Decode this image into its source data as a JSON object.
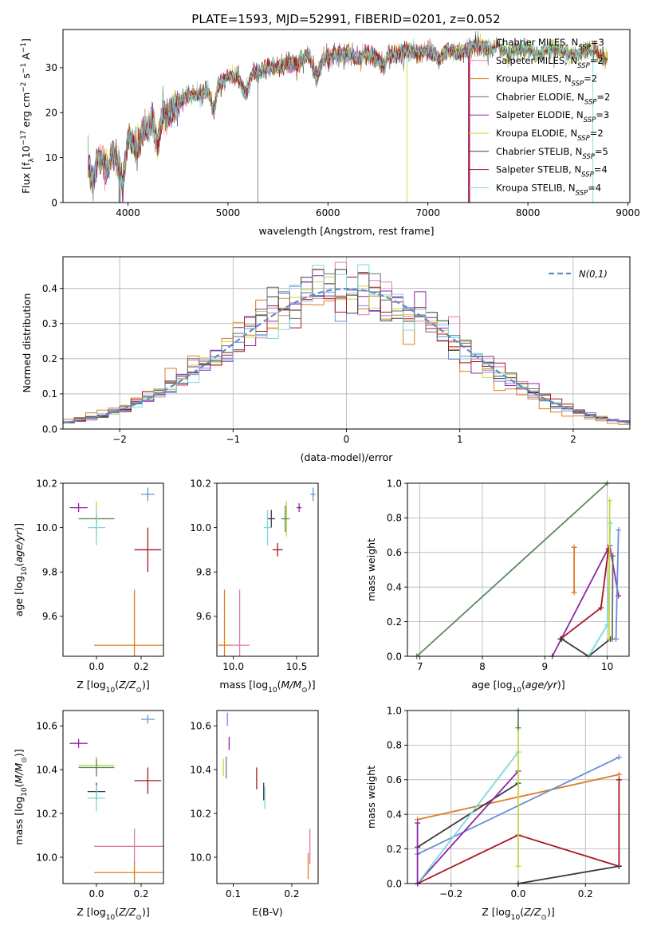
{
  "title": "PLATE=1593, MJD=52991, FIBERID=0201, z=0.052",
  "colors": {
    "chabrier_miles": "#5b8a5f",
    "salpeter_miles": "#e27aa8",
    "kroupa_miles": "#e07b20",
    "chabrier_elodie": "#6e6e6e",
    "salpeter_elodie": "#8e27a8",
    "kroupa_elodie": "#c5d93c",
    "chabrier_stelib": "#3b3b3b",
    "salpeter_stelib": "#a8141c",
    "kroupa_stelib": "#7fd8dd",
    "hist_blue": "#6a8fd8",
    "gauss": "#6688cc"
  },
  "chart_data": [
    {
      "type": "line",
      "id": "spectrum",
      "xlabel": "wavelength [Angstrom, rest frame]",
      "ylabel": "Flux [f_λ10^-17 erg cm^-2 s^-1 A^-1]",
      "xlim": [
        3350,
        9020
      ],
      "ylim": [
        0,
        38.5
      ],
      "xticks": [
        4000,
        5000,
        6000,
        7000,
        8000,
        9000
      ],
      "yticks": [
        0,
        10,
        20,
        30
      ],
      "spectrum_x": [
        3600,
        3650,
        3700,
        3750,
        3800,
        3850,
        3900,
        3950,
        4000,
        4050,
        4100,
        4150,
        4200,
        4250,
        4300,
        4350,
        4400,
        4500,
        4600,
        4700,
        4800,
        4861,
        4900,
        5000,
        5100,
        5175,
        5250,
        5300,
        5400,
        5500,
        5600,
        5700,
        5800,
        5893,
        5950,
        6000,
        6100,
        6200,
        6300,
        6400,
        6500,
        6563,
        6600,
        6700,
        6800,
        6900,
        7000,
        7100,
        7200,
        7300,
        7400,
        7500,
        7600,
        7700,
        7800,
        7900,
        8000,
        8100,
        8200,
        8300,
        8400,
        8500,
        8600,
        8700,
        8800
      ],
      "spectrum_y": [
        8,
        5,
        10,
        9,
        7,
        11,
        9,
        3,
        15,
        13,
        12,
        17,
        16,
        19,
        13,
        20,
        19,
        22,
        24,
        24,
        25,
        20,
        26,
        28,
        28,
        24,
        29,
        29,
        30,
        30,
        31,
        31,
        33,
        28,
        32,
        32,
        33,
        33,
        32,
        33,
        32,
        30,
        33,
        33,
        34,
        33,
        34,
        32,
        34,
        33,
        34,
        35,
        34,
        35,
        33,
        34,
        34,
        33,
        34,
        34,
        33,
        33,
        34,
        33,
        32
      ],
      "series": [
        {
          "name": "Chabrier MILES, N_SSP=3",
          "leg_main": "Chabrier MILES, N",
          "leg_sub": "SSP",
          "leg_tail": "=3",
          "color": "#5b8a5f",
          "drop": 5300
        },
        {
          "name": "Salpeter MILES, N_SSP=2",
          "leg_main": "Salpeter MILES, N",
          "leg_sub": "SSP",
          "leg_tail": "=2",
          "color": "#e27aa8",
          "drop": 7420
        },
        {
          "name": "Kroupa MILES, N_SSP=2",
          "leg_main": "Kroupa MILES, N",
          "leg_sub": "SSP",
          "leg_tail": "=2",
          "color": "#e07b20",
          "drop": 7410
        },
        {
          "name": "Chabrier ELODIE, N_SSP=2",
          "leg_main": "Chabrier ELODIE, N",
          "leg_sub": "SSP",
          "leg_tail": "=2",
          "color": "#6e6e6e",
          "drop": 3910
        },
        {
          "name": "Salpeter ELODIE, N_SSP=3",
          "leg_main": "Salpeter ELODIE, N",
          "leg_sub": "SSP",
          "leg_tail": "=3",
          "color": "#8e27a8",
          "drop": 7405
        },
        {
          "name": "Kroupa ELODIE, N_SSP=2",
          "leg_main": "Kroupa ELODIE, N",
          "leg_sub": "SSP",
          "leg_tail": "=2",
          "color": "#c5d93c",
          "drop": 6790
        },
        {
          "name": "Chabrier STELIB, N_SSP=5",
          "leg_main": "Chabrier STELIB, N",
          "leg_sub": "SSP",
          "leg_tail": "=5",
          "color": "#3b3b3b",
          "drop": 3920
        },
        {
          "name": "Salpeter STELIB, N_SSP=4",
          "leg_main": "Salpeter STELIB, N",
          "leg_sub": "SSP",
          "leg_tail": "=4",
          "color": "#a8141c",
          "drop": 7415
        },
        {
          "name": "Kroupa STELIB, N_SSP=4",
          "leg_main": "Kroupa STELIB, N",
          "leg_sub": "SSP",
          "leg_tail": "=4",
          "color": "#7fd8dd",
          "drop": 8650
        }
      ],
      "legend_position": "upper-right"
    },
    {
      "type": "histogram",
      "id": "residuals",
      "xlabel": "(data-model)/error",
      "ylabel": "Normed distribution",
      "xlim": [
        -2.5,
        2.5
      ],
      "ylim": [
        0,
        0.49
      ],
      "xticks": [
        -2,
        -1,
        0,
        1,
        2
      ],
      "yticks": [
        0.0,
        0.1,
        0.2,
        0.3,
        0.4
      ],
      "grid": true,
      "bin_width": 0.1,
      "bin_start": -2.5,
      "legend": "N(0,1)",
      "legend_position": "upper-right"
    },
    {
      "type": "scatter-errorbar",
      "id": "age_vs_Z",
      "xlabel": "Z [log10(Z/Z_sun)]",
      "ylabel": "age [log10(age/yr)]",
      "xlim": [
        -0.15,
        0.3
      ],
      "ylim": [
        9.42,
        10.2
      ],
      "xticks": [
        0.0,
        0.2
      ],
      "yticks": [
        9.6,
        9.8,
        10.0,
        10.2
      ],
      "points": [
        {
          "x": 0.23,
          "y": 10.15,
          "xe": 0.03,
          "ye": 0.03,
          "color": "#6a8fd8"
        },
        {
          "x": -0.08,
          "y": 10.09,
          "xe": 0.04,
          "ye": 0.02,
          "color": "#8e27a8"
        },
        {
          "x": 0.0,
          "y": 10.04,
          "xe": 0.08,
          "ye": 0.08,
          "color": "#c5d93c"
        },
        {
          "x": 0.0,
          "y": 10.04,
          "xe": 0.08,
          "ye": 0.02,
          "color": "#5b8a5f"
        },
        {
          "x": 0.0,
          "y": 10.0,
          "xe": 0.04,
          "ye": 0.08,
          "color": "#7fd8dd"
        },
        {
          "x": 0.23,
          "y": 9.9,
          "xe": 0.06,
          "ye": 0.1,
          "color": "#a8141c"
        },
        {
          "x": 0.17,
          "y": 9.47,
          "xe": 0.18,
          "ye": 0.25,
          "color": "#e07b20"
        }
      ]
    },
    {
      "type": "scatter-errorbar",
      "id": "age_vs_mass",
      "xlabel": "mass [log10(M/M_sun)]",
      "ylabel": "",
      "xlim": [
        9.87,
        10.67
      ],
      "ylim": [
        9.42,
        10.2
      ],
      "xticks": [
        10.0,
        10.5
      ],
      "yticks": [
        9.6,
        9.8,
        10.0,
        10.2
      ],
      "points": [
        {
          "x": 10.63,
          "y": 10.15,
          "xe": 0.02,
          "ye": 0.03,
          "color": "#6a8fd8"
        },
        {
          "x": 10.52,
          "y": 10.09,
          "xe": 0.02,
          "ye": 0.02,
          "color": "#8e27a8"
        },
        {
          "x": 10.42,
          "y": 10.04,
          "xe": 0.03,
          "ye": 0.08,
          "color": "#c5d93c"
        },
        {
          "x": 10.41,
          "y": 10.04,
          "xe": 0.03,
          "ye": 0.06,
          "color": "#5b8a5f"
        },
        {
          "x": 10.3,
          "y": 10.04,
          "xe": 0.03,
          "ye": 0.04,
          "color": "#3b3b3b"
        },
        {
          "x": 10.27,
          "y": 10.0,
          "xe": 0.03,
          "ye": 0.08,
          "color": "#7fd8dd"
        },
        {
          "x": 10.35,
          "y": 9.9,
          "xe": 0.04,
          "ye": 0.03,
          "color": "#a8141c"
        },
        {
          "x": 10.05,
          "y": 9.47,
          "xe": 0.08,
          "ye": 0.25,
          "color": "#e27aa8"
        },
        {
          "x": 9.93,
          "y": 9.47,
          "xe": 0.05,
          "ye": 0.25,
          "color": "#e07b20"
        }
      ]
    },
    {
      "type": "line",
      "id": "massweight_vs_age",
      "xlabel": "age [log10(age/yr)]",
      "ylabel": "mass weight",
      "xlim": [
        6.8,
        10.35
      ],
      "ylim": [
        0,
        1
      ],
      "xticks": [
        7,
        8,
        9,
        10
      ],
      "yticks": [
        0.0,
        0.2,
        0.4,
        0.6,
        0.8,
        1.0
      ],
      "grid": true,
      "series": [
        {
          "color": "#5b8a5f",
          "x": [
            6.95,
            10.0
          ],
          "y": [
            0.0,
            1.0
          ]
        },
        {
          "color": "#e07b20",
          "x": [
            9.47,
            9.47
          ],
          "y": [
            0.37,
            0.63
          ]
        },
        {
          "color": "#8e27a8",
          "x": [
            9.12,
            10.04,
            10.18
          ],
          "y": [
            0.0,
            0.64,
            0.35
          ]
        },
        {
          "color": "#a8141c",
          "x": [
            9.25,
            9.9,
            10.02
          ],
          "y": [
            0.1,
            0.28,
            0.62
          ]
        },
        {
          "color": "#3b3b3b",
          "x": [
            9.27,
            9.7,
            10.05
          ],
          "y": [
            0.1,
            0.0,
            0.1
          ]
        },
        {
          "color": "#7fd8dd",
          "x": [
            9.7,
            10.0,
            10.05
          ],
          "y": [
            0.0,
            0.18,
            0.77
          ]
        },
        {
          "color": "#6a8fd8",
          "x": [
            10.14,
            10.18
          ],
          "y": [
            0.1,
            0.73
          ]
        },
        {
          "color": "#c5d93c",
          "x": [
            10.03,
            10.04
          ],
          "y": [
            0.1,
            0.9
          ]
        },
        {
          "color": "#6e6e6e",
          "x": [
            10.08,
            10.09
          ],
          "y": [
            0.1,
            0.58
          ]
        }
      ]
    },
    {
      "type": "scatter-errorbar",
      "id": "mass_vs_Z",
      "xlabel": "Z [log10(Z/Z_sun)]",
      "ylabel": "mass [log10(M/M_sun)]",
      "xlim": [
        -0.15,
        0.3
      ],
      "ylim": [
        9.88,
        10.67
      ],
      "xticks": [
        0.0,
        0.2
      ],
      "yticks": [
        10.0,
        10.2,
        10.4,
        10.6
      ],
      "points": [
        {
          "x": 0.23,
          "y": 10.63,
          "xe": 0.03,
          "ye": 0.02,
          "color": "#6a8fd8"
        },
        {
          "x": -0.08,
          "y": 10.52,
          "xe": 0.04,
          "ye": 0.02,
          "color": "#8e27a8"
        },
        {
          "x": 0.0,
          "y": 10.42,
          "xe": 0.08,
          "ye": 0.04,
          "color": "#c5d93c"
        },
        {
          "x": 0.0,
          "y": 10.41,
          "xe": 0.08,
          "ye": 0.04,
          "color": "#5b8a5f"
        },
        {
          "x": 0.0,
          "y": 10.3,
          "xe": 0.04,
          "ye": 0.04,
          "color": "#3b3b3b"
        },
        {
          "x": 0.0,
          "y": 10.27,
          "xe": 0.04,
          "ye": 0.06,
          "color": "#7fd8dd"
        },
        {
          "x": 0.23,
          "y": 10.35,
          "xe": 0.06,
          "ye": 0.06,
          "color": "#a8141c"
        },
        {
          "x": 0.17,
          "y": 10.05,
          "xe": 0.18,
          "ye": 0.08,
          "color": "#e27aa8"
        },
        {
          "x": 0.17,
          "y": 9.93,
          "xe": 0.18,
          "ye": 0.05,
          "color": "#e07b20"
        }
      ]
    },
    {
      "type": "scatter-errorbar",
      "id": "mass_vs_EBV",
      "xlabel": "E(B-V)",
      "ylabel": "",
      "xlim": [
        0.072,
        0.245
      ],
      "ylim": [
        9.88,
        10.67
      ],
      "xticks": [
        0.1,
        0.2
      ],
      "yticks": [
        10.0,
        10.2,
        10.4,
        10.6
      ],
      "points": [
        {
          "x": 0.09,
          "y": 10.63,
          "xe": 0.0,
          "ye": 0.03,
          "color": "#6a8fd8"
        },
        {
          "x": 0.093,
          "y": 10.52,
          "xe": 0.0,
          "ye": 0.03,
          "color": "#8e27a8"
        },
        {
          "x": 0.083,
          "y": 10.41,
          "xe": 0.0,
          "ye": 0.04,
          "color": "#c5d93c"
        },
        {
          "x": 0.088,
          "y": 10.41,
          "xe": 0.0,
          "ye": 0.05,
          "color": "#5b8a5f"
        },
        {
          "x": 0.14,
          "y": 10.36,
          "xe": 0.0,
          "ye": 0.05,
          "color": "#a8141c"
        },
        {
          "x": 0.152,
          "y": 10.3,
          "xe": 0.0,
          "ye": 0.04,
          "color": "#3b3b3b"
        },
        {
          "x": 0.154,
          "y": 10.27,
          "xe": 0.0,
          "ye": 0.05,
          "color": "#7fd8dd"
        },
        {
          "x": 0.231,
          "y": 10.05,
          "xe": 0.0,
          "ye": 0.08,
          "color": "#e27aa8"
        },
        {
          "x": 0.228,
          "y": 9.96,
          "xe": 0.0,
          "ye": 0.06,
          "color": "#e07b20"
        }
      ]
    },
    {
      "type": "line",
      "id": "massweight_vs_Z",
      "xlabel": "Z [log10(Z/Z_sun)]",
      "ylabel": "mass weight",
      "xlim": [
        -0.33,
        0.33
      ],
      "ylim": [
        0,
        1
      ],
      "xticks": [
        -0.2,
        0.0,
        0.2
      ],
      "yticks": [
        0.0,
        0.2,
        0.4,
        0.6,
        0.8,
        1.0
      ],
      "grid": true,
      "series": [
        {
          "color": "#e07b20",
          "x": [
            -0.3,
            0.3
          ],
          "y": [
            0.37,
            0.63
          ]
        },
        {
          "color": "#6a8fd8",
          "x": [
            -0.3,
            0.3
          ],
          "y": [
            0.17,
            0.73
          ]
        },
        {
          "color": "#3b3b3b",
          "x": [
            -0.3,
            0.0
          ],
          "y": [
            0.21,
            0.58
          ]
        },
        {
          "color": "#8e27a8",
          "x": [
            -0.3,
            0.0
          ],
          "y": [
            0.0,
            0.65
          ]
        },
        {
          "color": "#7fd8dd",
          "x": [
            -0.3,
            0.0
          ],
          "y": [
            0.0,
            0.76
          ]
        },
        {
          "color": "#a8141c",
          "x": [
            -0.3,
            0.0,
            0.3,
            0.3
          ],
          "y": [
            0.0,
            0.28,
            0.1,
            0.6
          ]
        },
        {
          "color": "#3b3b3b",
          "x": [
            0.0,
            0.3
          ],
          "y": [
            0.0,
            0.1
          ]
        },
        {
          "color": "#c5d93c",
          "x": [
            0.0,
            0.0
          ],
          "y": [
            0.1,
            0.9
          ]
        },
        {
          "color": "#5b8a5f",
          "x": [
            0.0,
            0.0
          ],
          "y": [
            0.9,
            1.0
          ]
        },
        {
          "color": "#8e27a8",
          "x": [
            -0.3,
            -0.3
          ],
          "y": [
            0.0,
            0.35
          ]
        }
      ]
    }
  ]
}
